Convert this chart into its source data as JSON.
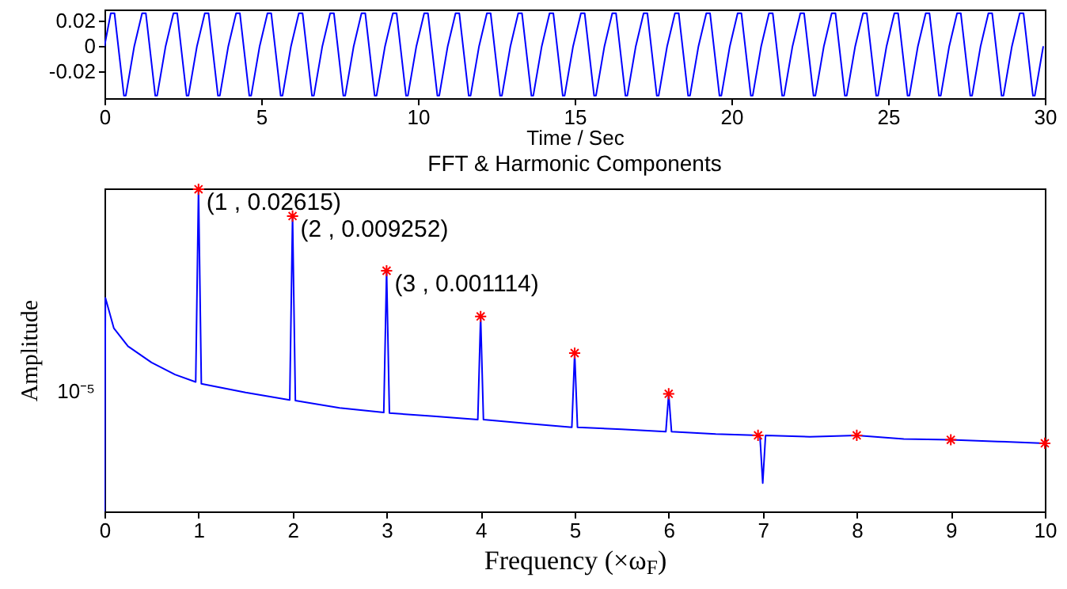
{
  "chart_data": [
    {
      "type": "line",
      "xlabel": "Time / Sec",
      "xlim": [
        0,
        30
      ],
      "xticks": [
        0,
        5,
        10,
        15,
        20,
        25,
        30
      ],
      "ylim": [
        -0.041,
        0.029
      ],
      "yticks": [
        0.02,
        0,
        -0.02
      ],
      "x": [
        0,
        0.2,
        0.32,
        0.62,
        0.68,
        0.95,
        1.2,
        1.32,
        1.62,
        1.68,
        1.95,
        2.2,
        2.32,
        2.62,
        2.68,
        2.95,
        3.2,
        3.32,
        3.62,
        3.68,
        3.95,
        4.2,
        4.32,
        4.62,
        4.68,
        4.95,
        5.2,
        5.32,
        5.62,
        5.68,
        5.95,
        6.2,
        6.32,
        6.62,
        6.68,
        6.95,
        7.2,
        7.32,
        7.62,
        7.68,
        7.95,
        8.2,
        8.32,
        8.62,
        8.68,
        8.95,
        9.2,
        9.32,
        9.62,
        9.68,
        9.95,
        10.2,
        10.32,
        10.62,
        10.68,
        10.95,
        11.2,
        11.32,
        11.62,
        11.68,
        11.95,
        12.2,
        12.32,
        12.62,
        12.68,
        12.95,
        13.2,
        13.32,
        13.62,
        13.68,
        13.95,
        14.2,
        14.32,
        14.62,
        14.68,
        14.95,
        15.2,
        15.32,
        15.62,
        15.68,
        15.95,
        16.2,
        16.32,
        16.62,
        16.68,
        16.95,
        17.2,
        17.32,
        17.62,
        17.68,
        17.95,
        18.2,
        18.32,
        18.62,
        18.68,
        18.95,
        19.2,
        19.32,
        19.62,
        19.68,
        19.95,
        20.2,
        20.32,
        20.62,
        20.68,
        20.95,
        21.2,
        21.32,
        21.62,
        21.68,
        21.95,
        22.2,
        22.32,
        22.62,
        22.68,
        22.95,
        23.2,
        23.32,
        23.62,
        23.68,
        23.95,
        24.2,
        24.32,
        24.62,
        24.68,
        24.95,
        25.2,
        25.32,
        25.62,
        25.68,
        25.95,
        26.2,
        26.32,
        26.62,
        26.68,
        26.95,
        27.2,
        27.32,
        27.62,
        27.68,
        27.95,
        28.2,
        28.32,
        28.62,
        28.68,
        28.95,
        29.2,
        29.32,
        29.62,
        29.68,
        29.95
      ],
      "series": [
        {
          "color": "#0000ff",
          "values": [
            0,
            0.026,
            0.026,
            -0.039,
            -0.039,
            0,
            0.026,
            0.026,
            -0.039,
            -0.039,
            0,
            0.026,
            0.026,
            -0.039,
            -0.039,
            0,
            0.026,
            0.026,
            -0.039,
            -0.039,
            0,
            0.026,
            0.026,
            -0.039,
            -0.039,
            0,
            0.026,
            0.026,
            -0.039,
            -0.039,
            0,
            0.026,
            0.026,
            -0.039,
            -0.039,
            0,
            0.026,
            0.026,
            -0.039,
            -0.039,
            0,
            0.026,
            0.026,
            -0.039,
            -0.039,
            0,
            0.026,
            0.026,
            -0.039,
            -0.039,
            0,
            0.026,
            0.026,
            -0.039,
            -0.039,
            0,
            0.026,
            0.026,
            -0.039,
            -0.039,
            0,
            0.026,
            0.026,
            -0.039,
            -0.039,
            0,
            0.026,
            0.026,
            -0.039,
            -0.039,
            0,
            0.026,
            0.026,
            -0.039,
            -0.039,
            0,
            0.026,
            0.026,
            -0.039,
            -0.039,
            0,
            0.026,
            0.026,
            -0.039,
            -0.039,
            0,
            0.026,
            0.026,
            -0.039,
            -0.039,
            0,
            0.026,
            0.026,
            -0.039,
            -0.039,
            0,
            0.026,
            0.026,
            -0.039,
            -0.039,
            0,
            0.026,
            0.026,
            -0.039,
            -0.039,
            0,
            0.026,
            0.026,
            -0.039,
            -0.039,
            0,
            0.026,
            0.026,
            -0.039,
            -0.039,
            0,
            0.026,
            0.026,
            -0.039,
            -0.039,
            0,
            0.026,
            0.026,
            -0.039,
            -0.039,
            0,
            0.026,
            0.026,
            -0.039,
            -0.039,
            0,
            0.026,
            0.026,
            -0.039,
            -0.039,
            0,
            0.026,
            0.026,
            -0.039,
            -0.039,
            0,
            0.026,
            0.026,
            -0.039,
            -0.039,
            0,
            0.026,
            0.026,
            -0.039,
            -0.039,
            0
          ]
        }
      ]
    },
    {
      "type": "line",
      "title": "FFT & Harmonic Components",
      "xlabel": "Frequency (×ω$_{F}$)",
      "ylabel": "Amplitude",
      "log": "y",
      "xlim": [
        0,
        10
      ],
      "xticks": [
        0,
        1,
        2,
        3,
        4,
        5,
        6,
        7,
        8,
        9,
        10
      ],
      "ylim": [
        1e-07,
        0.027
      ],
      "annotations": [
        "10⁻⁵"
      ],
      "series": [
        {
          "type": "line",
          "color": "#0000ff",
          "x": [
            0,
            0.01,
            0.1,
            0.25,
            0.5,
            0.75,
            0.97,
            1,
            1.03,
            1.5,
            1.97,
            2,
            2.03,
            2.5,
            2.97,
            3,
            3.03,
            3.5,
            3.97,
            4,
            4.03,
            4.5,
            4.97,
            5,
            5.03,
            5.5,
            5.97,
            6,
            6.03,
            6.5,
            6.97,
            7,
            7.03,
            7.5,
            8,
            8.5,
            9,
            9.5,
            10
          ],
          "values": [
            1e-07,
            0.00039,
            0.00012,
            6e-05,
            3.2e-05,
            2e-05,
            1.5e-05,
            0.02615,
            1.4e-05,
            1e-05,
            7.5e-06,
            0.009252,
            7.3e-06,
            5.5e-06,
            4.6e-06,
            0.001114,
            4.5e-06,
            4e-06,
            3.5e-06,
            0.00019,
            3.5e-06,
            3e-06,
            2.6e-06,
            4.6e-05,
            2.6e-06,
            2.4e-06,
            2.2e-06,
            9.5e-06,
            2.2e-06,
            2e-06,
            1.9e-06,
            3e-07,
            1.9e-06,
            1.8e-06,
            1.9e-06,
            1.65e-06,
            1.6e-06,
            1.5e-06,
            1.4e-06
          ]
        },
        {
          "type": "scatter",
          "color": "#ff0000",
          "marker": "cross",
          "x": [
            1,
            2,
            3,
            4,
            5,
            6,
            6.95,
            8,
            9,
            10
          ],
          "values": [
            0.02615,
            0.009252,
            0.001114,
            0.00019,
            4.6e-05,
            9.5e-06,
            1.9e-06,
            1.9e-06,
            1.6e-06,
            1.4e-06
          ],
          "value_labels": [
            "(1 , 0.02615)",
            "(2 , 0.009252)",
            "(3 , 0.001114)",
            null,
            null,
            null,
            null,
            null,
            null,
            null
          ]
        }
      ]
    }
  ]
}
